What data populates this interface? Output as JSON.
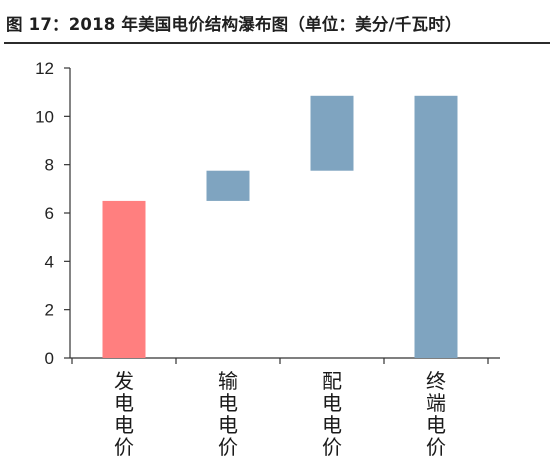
{
  "figure": {
    "title": "图 17：2018 年美国电价结构瀑布图（单位：美分/千瓦时）"
  },
  "chart_data": {
    "type": "bar",
    "subtype": "waterfall",
    "title": "图 17：2018 年美国电价结构瀑布图（单位：美分/千瓦时）",
    "xlabel": "",
    "ylabel": "",
    "ylim": [
      0,
      12
    ],
    "yticks": [
      "0",
      "2",
      "4",
      "6",
      "8",
      "10",
      "12"
    ],
    "grid": false,
    "legend": "none",
    "categories": [
      "发电电价",
      "输电电价",
      "配电电价",
      "终端电价"
    ],
    "bars": [
      {
        "category": "发电电价",
        "start": 0,
        "end": 6.5,
        "value": 6.5,
        "color": "#ff7f7f"
      },
      {
        "category": "输电电价",
        "start": 6.5,
        "end": 7.75,
        "value": 1.25,
        "color": "#7fa4c0"
      },
      {
        "category": "配电电价",
        "start": 7.75,
        "end": 10.85,
        "value": 3.1,
        "color": "#7fa4c0"
      },
      {
        "category": "终端电价",
        "start": 0,
        "end": 10.85,
        "value": 10.85,
        "color": "#7fa4c0"
      }
    ]
  }
}
